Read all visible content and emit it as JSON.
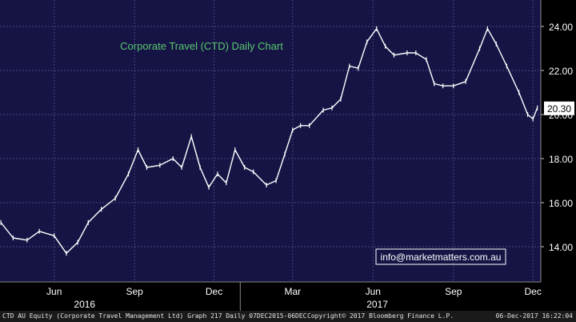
{
  "chart_data": {
    "type": "line",
    "title": "Corporate Travel (CTD) Daily Chart",
    "xlabel": "",
    "ylabel": "",
    "ylim": [
      12.4,
      25.2
    ],
    "y_ticks": [
      "14.00",
      "16.00",
      "18.00",
      "20.00",
      "22.00",
      "24.00"
    ],
    "y_tick_values": [
      14,
      16,
      18,
      20,
      22,
      24
    ],
    "x_ticks": [
      "Jun",
      "Sep",
      "Dec",
      "Mar",
      "Jun",
      "Sep",
      "Dec"
    ],
    "x_year_labels": [
      "2016",
      "2017"
    ],
    "last_price_label": "20.30",
    "watermark": "info@marketmatters.com.au",
    "grid": true,
    "series": [
      {
        "color": "#ffffff",
        "x": [
          "2016-04-01",
          "2016-04-15",
          "2016-05-01",
          "2016-05-15",
          "2016-06-01",
          "2016-06-15",
          "2016-06-28",
          "2016-07-10",
          "2016-07-25",
          "2016-08-10",
          "2016-08-25",
          "2016-09-05",
          "2016-09-15",
          "2016-09-30",
          "2016-10-15",
          "2016-10-25",
          "2016-11-05",
          "2016-11-15",
          "2016-11-25",
          "2016-12-05",
          "2016-12-15",
          "2016-12-25",
          "2017-01-05",
          "2017-01-15",
          "2017-01-30",
          "2017-02-10",
          "2017-02-20",
          "2017-03-01",
          "2017-03-10",
          "2017-03-20",
          "2017-04-05",
          "2017-04-15",
          "2017-04-25",
          "2017-05-05",
          "2017-05-15",
          "2017-05-25",
          "2017-06-05",
          "2017-06-15",
          "2017-06-25",
          "2017-07-10",
          "2017-07-20",
          "2017-08-01",
          "2017-08-10",
          "2017-08-20",
          "2017-09-01",
          "2017-09-15",
          "2017-10-01",
          "2017-10-10",
          "2017-10-20",
          "2017-11-01",
          "2017-11-15",
          "2017-11-25",
          "2017-12-01",
          "2017-12-06"
        ],
        "values": [
          15.1,
          14.4,
          14.3,
          14.7,
          14.5,
          13.7,
          14.2,
          15.1,
          15.7,
          16.2,
          17.3,
          18.4,
          17.6,
          17.7,
          18.0,
          17.6,
          19.0,
          17.6,
          16.7,
          17.3,
          16.9,
          18.4,
          17.6,
          17.4,
          16.8,
          17.0,
          18.2,
          19.3,
          19.5,
          19.5,
          20.2,
          20.3,
          20.7,
          22.2,
          22.1,
          23.3,
          23.9,
          23.1,
          22.7,
          22.8,
          22.8,
          22.5,
          21.4,
          21.3,
          21.3,
          21.5,
          23.0,
          23.9,
          23.2,
          22.2,
          21.0,
          20.0,
          19.8,
          20.3
        ]
      }
    ]
  },
  "footer": {
    "left": "CTD AU Equity (Corporate Travel Management Ltd) Graph 217  Daily 07DEC2015-06DEC",
    "middle": "Copyright© 2017 Bloomberg Finance L.P.",
    "right": "06-Dec-2017 16:22:04"
  },
  "colors": {
    "plot_background": "#161445",
    "grid": "#44447a",
    "title": "#58c86e",
    "price_label_bg": "#ffffff",
    "price_label_text": "#000000",
    "watermark_border": "#ffffff"
  }
}
